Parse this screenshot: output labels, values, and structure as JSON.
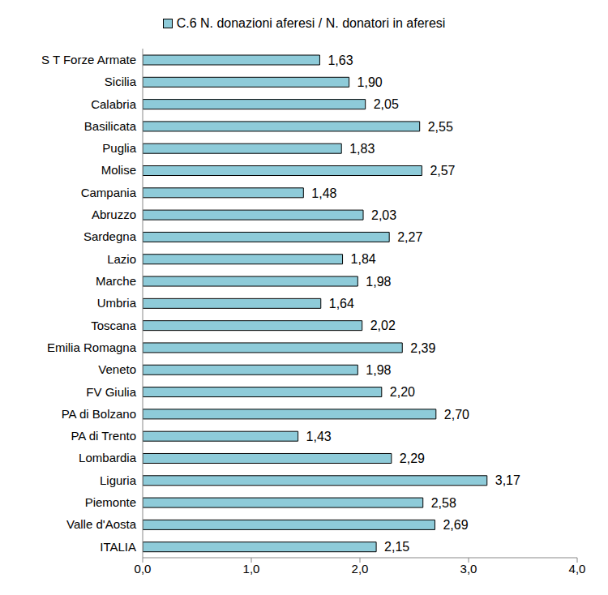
{
  "chart_data": {
    "type": "bar",
    "orientation": "horizontal",
    "categories": [
      "S T Forze Armate",
      "Sicilia",
      "Calabria",
      "Basilicata",
      "Puglia",
      "Molise",
      "Campania",
      "Abruzzo",
      "Sardegna",
      "Lazio",
      "Marche",
      "Umbria",
      "Toscana",
      "Emilia Romagna",
      "Veneto",
      "FV Giulia",
      "PA di Bolzano",
      "PA di Trento",
      "Lombardia",
      "Liguria",
      "Piemonte",
      "Valle d'Aosta",
      "ITALIA"
    ],
    "series": [
      {
        "name": "C.6 N. donazioni aferesi / N. donatori in aferesi",
        "color": "#8ecbd9",
        "values": [
          1.63,
          1.9,
          2.05,
          2.55,
          1.83,
          2.57,
          1.48,
          2.03,
          2.27,
          1.84,
          1.98,
          1.64,
          2.02,
          2.39,
          1.98,
          2.2,
          2.7,
          1.43,
          2.29,
          3.17,
          2.58,
          2.69,
          2.15
        ],
        "value_labels": [
          "1,63",
          "1,90",
          "2,05",
          "2,55",
          "1,83",
          "2,57",
          "1,48",
          "2,03",
          "2,27",
          "1,84",
          "1,98",
          "1,64",
          "2,02",
          "2,39",
          "1,98",
          "2,20",
          "2,70",
          "1,43",
          "2,29",
          "3,17",
          "2,58",
          "2,69",
          "2,15"
        ]
      }
    ],
    "xlim": [
      0,
      4
    ],
    "xticks": [
      {
        "value": 0,
        "label": "0,0"
      },
      {
        "value": 1,
        "label": "1,0"
      },
      {
        "value": 2,
        "label": "2,0"
      },
      {
        "value": 3,
        "label": "3,0"
      },
      {
        "value": 4,
        "label": "4,0"
      }
    ],
    "data_labels": true,
    "grid": false
  }
}
